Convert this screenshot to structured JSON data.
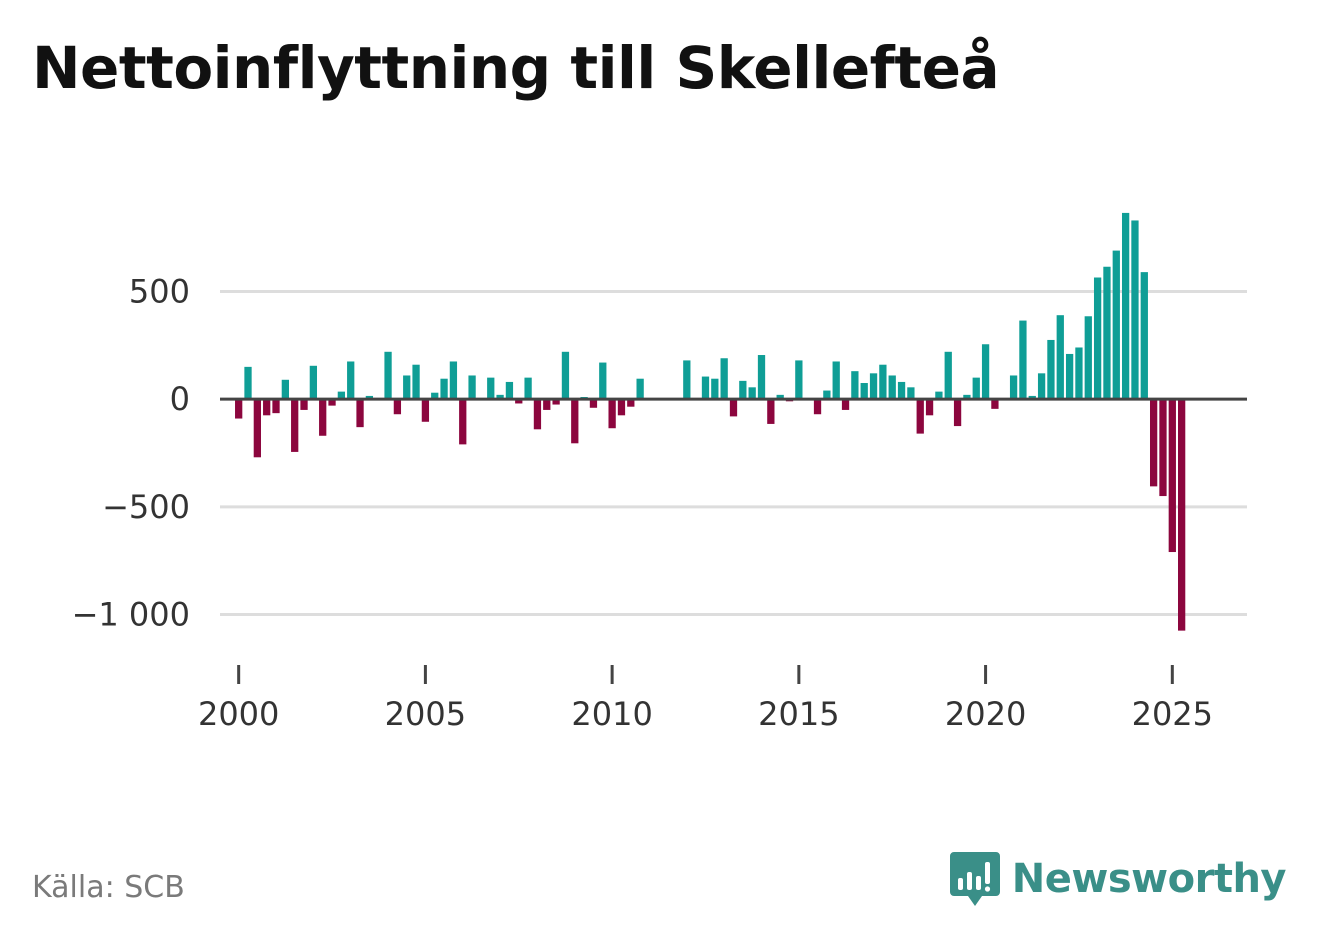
{
  "title": "Nettoinflyttning till Skellefteå",
  "source": "Källa: SCB",
  "brand": {
    "name": "Newsworthy",
    "icon": "newsworthy-logo-icon"
  },
  "colors": {
    "positive": "#0f9e96",
    "negative": "#8c063e",
    "grid": "#dddddd",
    "zero": "#444444",
    "text": "#333333",
    "brand": "#3a8f88"
  },
  "chart_data": {
    "type": "bar",
    "title": "Nettoinflyttning till Skellefteå",
    "xlabel": "",
    "ylabel": "",
    "grid": true,
    "x_start": 2000.0,
    "x_step": 0.25,
    "xlim": [
      1999.5,
      2027.0
    ],
    "ylim": [
      -1230,
      990
    ],
    "yticks": [
      500,
      0,
      -500,
      -1000
    ],
    "ytick_labels": [
      "500",
      "0",
      "−500",
      "−1 000"
    ],
    "xticks": [
      2000,
      2005,
      2010,
      2015,
      2020,
      2025
    ],
    "xtick_labels": [
      "2000",
      "2005",
      "2010",
      "2015",
      "2020",
      "2025"
    ],
    "values": [
      -90,
      150,
      -270,
      -75,
      -65,
      90,
      -245,
      -50,
      155,
      -170,
      -30,
      35,
      175,
      -130,
      15,
      0,
      220,
      -70,
      110,
      160,
      -105,
      30,
      95,
      175,
      -210,
      110,
      0,
      100,
      20,
      80,
      -20,
      100,
      -140,
      -50,
      -25,
      220,
      -205,
      10,
      -40,
      170,
      -135,
      -75,
      -35,
      95,
      0,
      0,
      0,
      0,
      180,
      0,
      105,
      95,
      190,
      -80,
      85,
      55,
      205,
      -115,
      20,
      -10,
      180,
      0,
      -70,
      40,
      175,
      -50,
      130,
      75,
      120,
      160,
      110,
      80,
      55,
      -160,
      -75,
      35,
      220,
      -125,
      20,
      100,
      255,
      -45,
      0,
      110,
      365,
      15,
      120,
      275,
      390,
      210,
      240,
      385,
      565,
      615,
      690,
      865,
      830,
      590,
      -405,
      -450,
      -710,
      -1075
    ]
  }
}
